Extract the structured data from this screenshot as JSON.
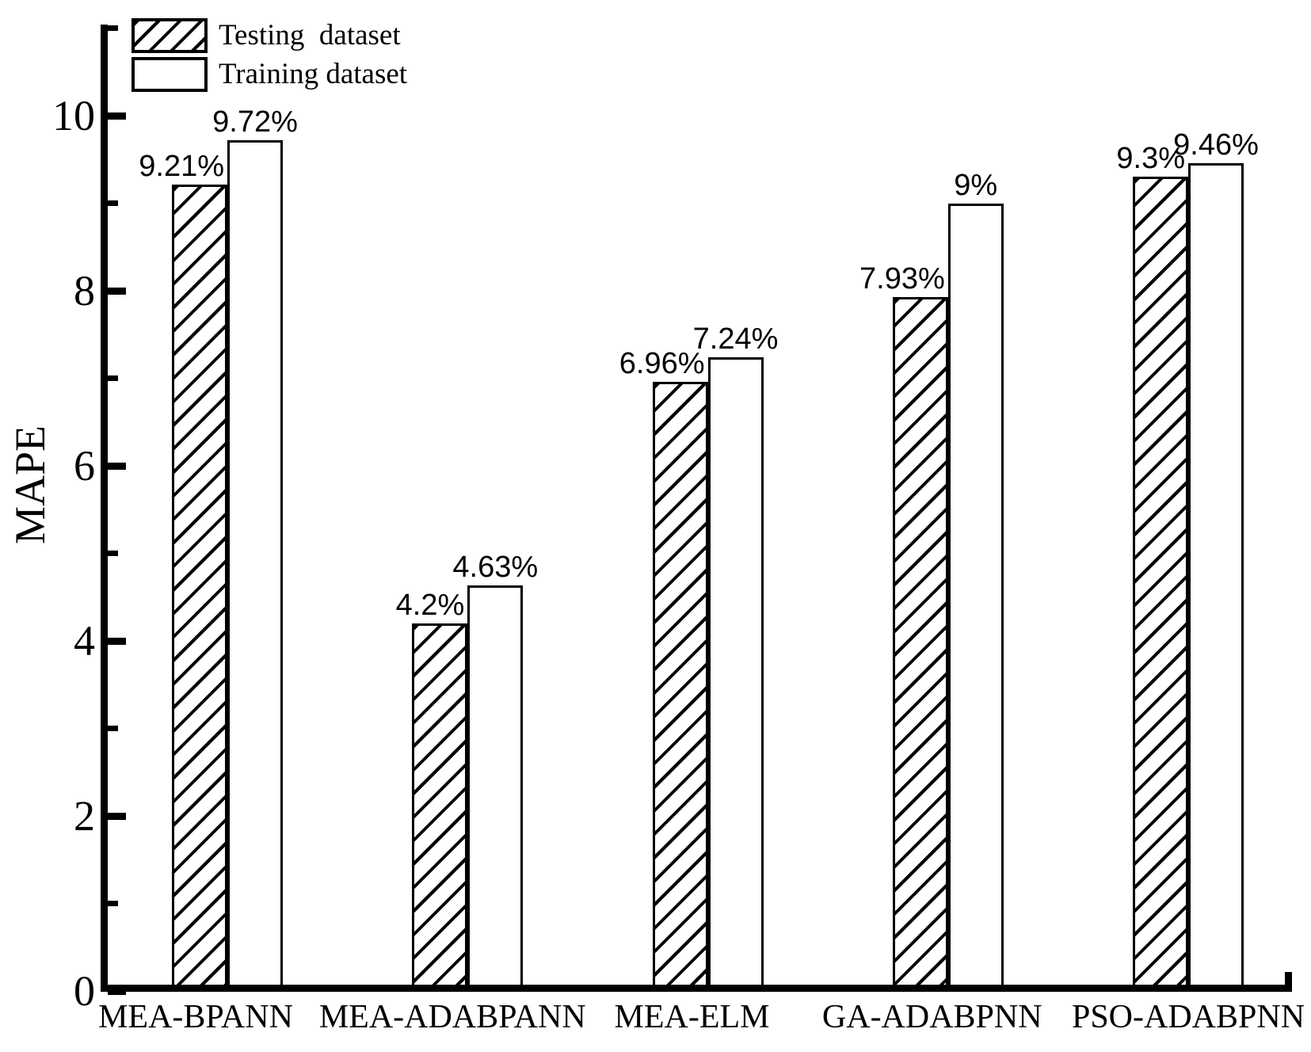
{
  "chart_data": {
    "type": "bar",
    "title": "",
    "xlabel": "",
    "ylabel": "MAPE",
    "ylim": [
      0,
      11
    ],
    "grid": false,
    "legend_position": "top-left",
    "y_major_ticks": [
      0,
      2,
      4,
      6,
      8,
      10
    ],
    "y_minor_ticks": [
      1,
      3,
      5,
      7,
      9,
      11
    ],
    "categories": [
      "MEA-BPANN",
      "MEA-ADABPANN",
      "MEA-ELM",
      "GA-ADABPNN",
      "PSO-ADABPNN"
    ],
    "series": [
      {
        "name": "Testing  dataset",
        "style": "hatched",
        "values": [
          9.21,
          4.2,
          6.96,
          7.93,
          9.3
        ],
        "labels": [
          "9.21%",
          "4.2%",
          "6.96%",
          "7.93%",
          "9.3%"
        ]
      },
      {
        "name": "Training dataset",
        "style": "plain",
        "values": [
          9.72,
          4.63,
          7.24,
          9,
          9.46
        ],
        "labels": [
          "9.72%",
          "4.63%",
          "7.24%",
          "9%",
          "9.46%"
        ]
      }
    ],
    "colors": {
      "bar_fill": "#ffffff",
      "bar_border": "#000000",
      "hatch": "#000000",
      "text": "#000000",
      "background": "#ffffff"
    }
  }
}
